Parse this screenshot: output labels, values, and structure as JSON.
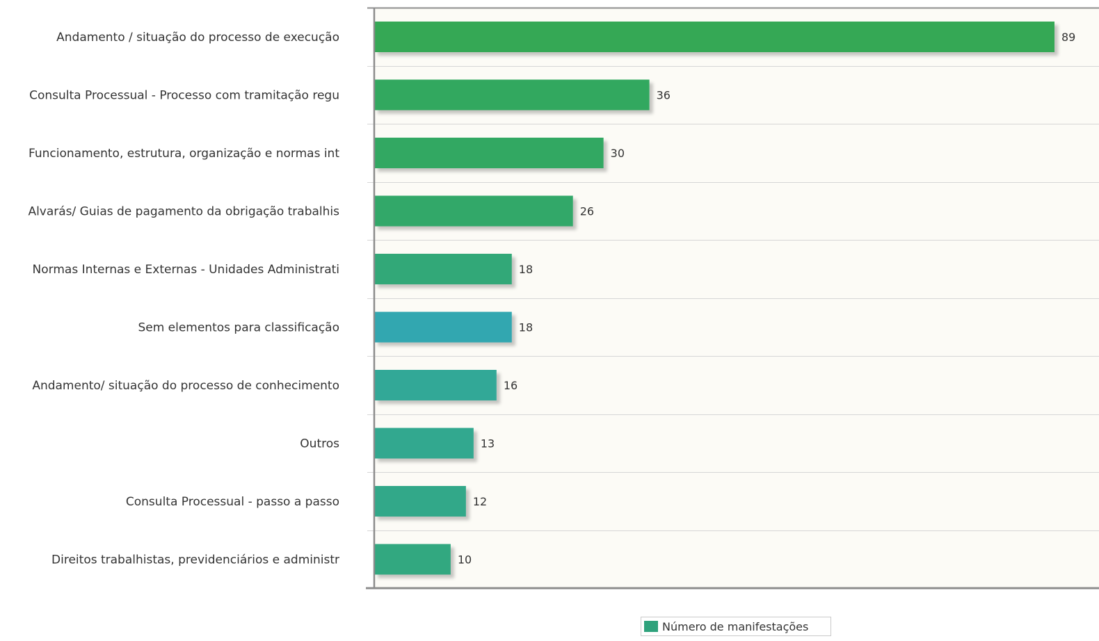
{
  "chart_data": {
    "type": "bar",
    "orientation": "horizontal",
    "categories": [
      "Andamento / situação do processo de execução",
      "Consulta Processual - Processo com tramitação regu",
      "Funcionamento, estrutura, organização e normas int",
      "Alvarás/ Guias de pagamento da obrigação trabalhis",
      "Normas Internas e Externas - Unidades Administrati",
      "Sem elementos para classificação",
      "Andamento/ situação do processo de conhecimento",
      "Outros",
      "Consulta Processual - passo a passo",
      "Direitos trabalhistas, previdenciários e administr"
    ],
    "series": [
      {
        "name": "Número de manifestações",
        "values": [
          89,
          36,
          30,
          26,
          18,
          18,
          16,
          13,
          12,
          10
        ]
      }
    ],
    "bar_colors": [
      "#35a855",
      "#33a85e",
      "#33a862",
      "#33a869",
      "#33a878",
      "#31a7b0",
      "#33a897",
      "#33a88f",
      "#33a889",
      "#33a880"
    ],
    "xlim": [
      0,
      89
    ],
    "grid": true,
    "legend_position": "bottom",
    "plot_background": "#fcfbf6",
    "grid_color": "#d6d6d6",
    "axis_color": "#8c8c8c",
    "data_labels": true
  },
  "legend": {
    "label": "Número de manifestações",
    "color": "#2fa27c"
  }
}
